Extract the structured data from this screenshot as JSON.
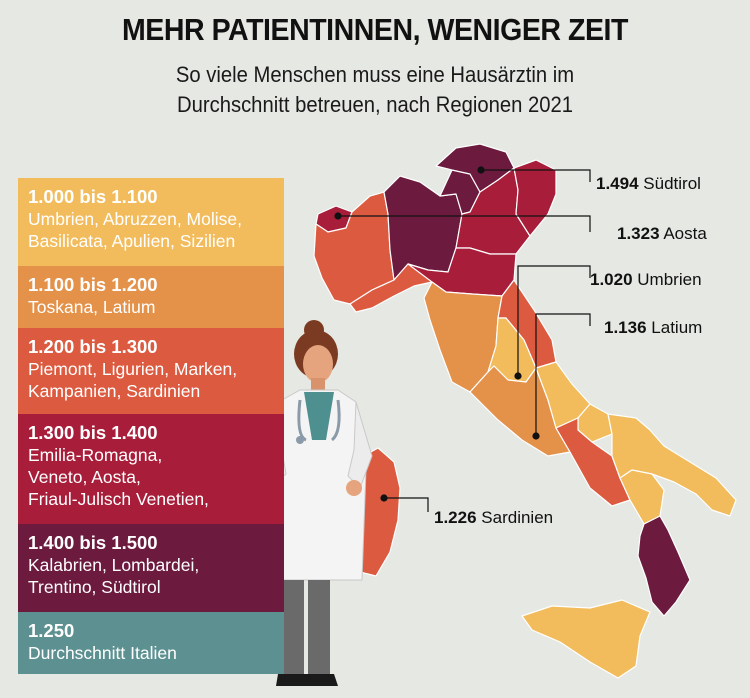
{
  "header": {
    "title": "MEHR PATIENTINNEN, WENIGER ZEIT",
    "subtitle_line1": "So viele Menschen muss eine Hausärztin im",
    "subtitle_line2": "Durchschnitt betreuen, nach Regionen 2021"
  },
  "legend": [
    {
      "range": "1.000 bis 1.100",
      "regions": "Umbrien, Abruzzen, Molise,\nBasilicata, Apulien, Sizilien",
      "color": "#f2bc5c"
    },
    {
      "range": "1.100 bis 1.200",
      "regions": "Toskana, Latium",
      "color": "#e4914a"
    },
    {
      "range": "1.200 bis 1.300",
      "regions": "Piemont, Ligurien, Marken,\nKampanien, Sardinien",
      "color": "#dc5a40"
    },
    {
      "range": "1.300 bis 1.400",
      "regions": "Emilia-Romagna,\nVeneto, Aosta,\nFriaul-Julisch Venetien,",
      "color": "#a81e3a"
    },
    {
      "range": "1.400 bis 1.500",
      "regions": "Kalabrien, Lombardei,\nTrentino, Südtirol",
      "color": "#6c1a3e"
    },
    {
      "range": "1.250",
      "regions": "Durchschnitt Italien",
      "color": "#5d9191"
    }
  ],
  "callouts": [
    {
      "value": "1.494",
      "name": "Südtirol"
    },
    {
      "value": "1.323",
      "name": "Aosta"
    },
    {
      "value": "1.020",
      "name": "Umbrien"
    },
    {
      "value": "1.136",
      "name": "Latium"
    },
    {
      "value": "1.226",
      "name": "Sardinien"
    }
  ]
}
